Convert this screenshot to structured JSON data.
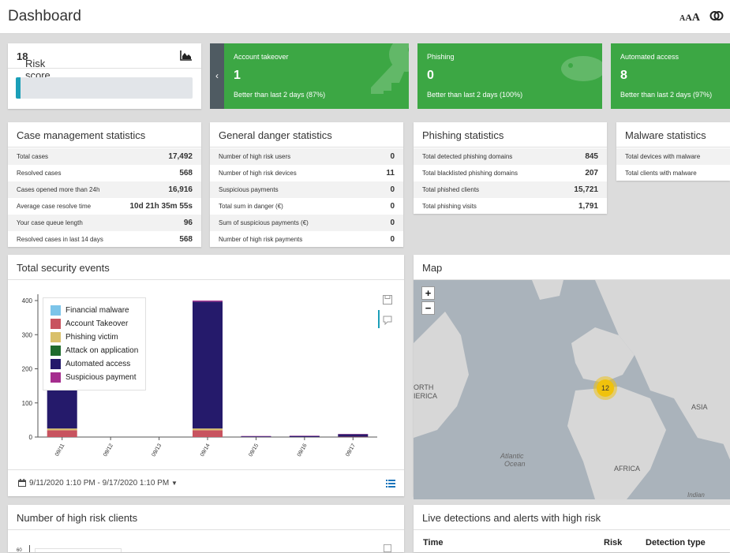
{
  "header": {
    "title": "Dashboard",
    "font_size_label": "AAA"
  },
  "risk": {
    "label": "Risk score",
    "value": "18",
    "level": 0.025
  },
  "tiles": [
    {
      "label": "Account takeover",
      "value": "1",
      "sub": "Better than last 2 days (87%)"
    },
    {
      "label": "Phishing",
      "value": "0",
      "sub": "Better than last 2 days (100%)"
    },
    {
      "label": "Automated access",
      "value": "8",
      "sub": "Better than last 2 days (97%)"
    }
  ],
  "case_stats": {
    "title": "Case management statistics",
    "rows": [
      {
        "k": "Total cases",
        "v": "17,492"
      },
      {
        "k": "Resolved cases",
        "v": "568"
      },
      {
        "k": "Cases opened more than 24h",
        "v": "16,916"
      },
      {
        "k": "Average case resolve time",
        "v": "10d 21h 35m 55s"
      },
      {
        "k": "Your case queue length",
        "v": "96"
      },
      {
        "k": "Resolved cases in last 14 days",
        "v": "568"
      }
    ]
  },
  "danger_stats": {
    "title": "General danger statistics",
    "rows": [
      {
        "k": "Number of high risk users",
        "v": "0"
      },
      {
        "k": "Number of high risk devices",
        "v": "11"
      },
      {
        "k": "Suspicious payments",
        "v": "0"
      },
      {
        "k": "Total sum in danger (€)",
        "v": "0"
      },
      {
        "k": "Sum of suspicious payments (€)",
        "v": "0"
      },
      {
        "k": "Number of high risk payments",
        "v": "0"
      }
    ]
  },
  "phishing_stats": {
    "title": "Phishing statistics",
    "rows": [
      {
        "k": "Total detected phishing domains",
        "v": "845"
      },
      {
        "k": "Total blacklisted phishing domains",
        "v": "207"
      },
      {
        "k": "Total phished clients",
        "v": "15,721"
      },
      {
        "k": "Total phishing visits",
        "v": "1,791"
      }
    ]
  },
  "malware_stats": {
    "title": "Malware statistics",
    "rows": [
      {
        "k": "Total devices with malware",
        "v": ""
      },
      {
        "k": "Total clients with malware",
        "v": ""
      }
    ]
  },
  "events": {
    "title": "Total security events",
    "date_range": "9/11/2020 1:10 PM - 9/17/2020 1:10 PM"
  },
  "chart_data": {
    "type": "bar",
    "categories": [
      "09/11",
      "09/12",
      "09/13",
      "09/14",
      "09/15",
      "09/16",
      "09/17"
    ],
    "ylim": [
      0,
      400
    ],
    "yticks": [
      0,
      100,
      200,
      300,
      400
    ],
    "series": [
      {
        "name": "Financial malware",
        "color": "#7cc4e9",
        "values": [
          0,
          0,
          0,
          0,
          0,
          0,
          0
        ]
      },
      {
        "name": "Account Takeover",
        "color": "#c8535f",
        "values": [
          20,
          0,
          0,
          20,
          0,
          0,
          1
        ]
      },
      {
        "name": "Phishing victim",
        "color": "#d9c06a",
        "values": [
          5,
          0,
          0,
          5,
          0,
          0,
          0
        ]
      },
      {
        "name": "Attack on application",
        "color": "#1f6b2d",
        "values": [
          0,
          0,
          0,
          0,
          0,
          0,
          0
        ]
      },
      {
        "name": "Automated access",
        "color": "#251a6b",
        "values": [
          115,
          0,
          0,
          372,
          2,
          3,
          7
        ]
      },
      {
        "name": "Suspicious payment",
        "color": "#a52d8e",
        "values": [
          0,
          0,
          0,
          3,
          1,
          1,
          1
        ]
      }
    ]
  },
  "map": {
    "title": "Map",
    "cluster_count": "12",
    "labels": {
      "north_america_1": "ORTH",
      "north_america_2": "IERICA",
      "ocean_1": "Atlantic",
      "ocean_2": "Ocean",
      "africa": "AFRICA",
      "asia": "ASIA",
      "indian": "Indian"
    }
  },
  "high_risk_clients": {
    "title": "Number of high risk clients",
    "ytick_top": "60"
  },
  "live": {
    "title": "Live detections and alerts with high risk",
    "cols": [
      "Time",
      "Risk",
      "Detection type"
    ]
  }
}
